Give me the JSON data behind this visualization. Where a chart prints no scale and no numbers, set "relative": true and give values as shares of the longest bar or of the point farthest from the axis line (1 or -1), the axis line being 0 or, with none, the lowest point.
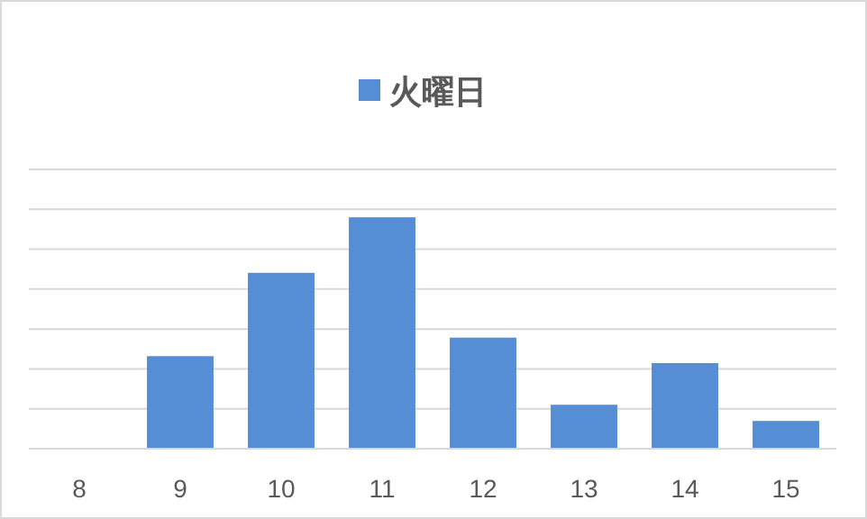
{
  "chart_data": {
    "type": "bar",
    "relative": true,
    "categories": [
      "8",
      "9",
      "10",
      "11",
      "12",
      "13",
      "14",
      "15"
    ],
    "series": [
      {
        "name": "火曜日",
        "color": "#558ed5",
        "values": [
          0,
          0.4,
          0.76,
          1,
          0.48,
          0.19,
          0.37,
          0.12
        ]
      }
    ],
    "grid": "y",
    "legend": "top"
  }
}
